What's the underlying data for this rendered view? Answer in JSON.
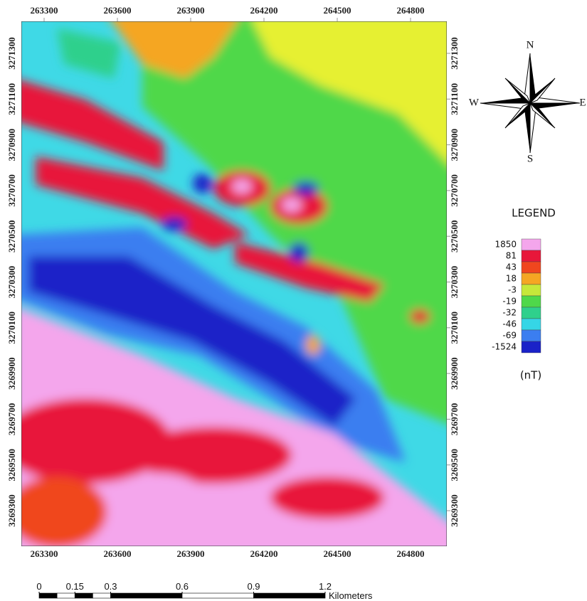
{
  "map": {
    "x_ticks": [
      263300,
      263600,
      263900,
      264200,
      264500,
      264800
    ],
    "y_ticks": [
      3271300,
      3271100,
      3270900,
      3270700,
      3270500,
      3270300,
      3270100,
      3269900,
      3269700,
      3269500,
      3269300
    ],
    "compass": {
      "north": "N",
      "south": "S",
      "west": "W",
      "east": "E"
    },
    "legend": {
      "title": "LEGEND",
      "unit": "(nT)",
      "classes": [
        {
          "label": 1850,
          "color": "#f4a6ec"
        },
        {
          "label": 81,
          "color": "#e8173a"
        },
        {
          "label": 43,
          "color": "#f0461e"
        },
        {
          "label": 18,
          "color": "#f5a623"
        },
        {
          "label": -3,
          "color": "#c6e83a"
        },
        {
          "label": -19,
          "color": "#4fd84a"
        },
        {
          "label": -32,
          "color": "#2fd08c"
        },
        {
          "label": -46,
          "color": "#35d6e6"
        },
        {
          "label": -69,
          "color": "#3b7ef0"
        },
        {
          "label": -1524,
          "color": "#1a22c8"
        }
      ]
    },
    "scale_bar": {
      "ticks": [
        0,
        0.15,
        0.3,
        0.6,
        0.9,
        1.2
      ],
      "unit": "Kilometers"
    }
  }
}
